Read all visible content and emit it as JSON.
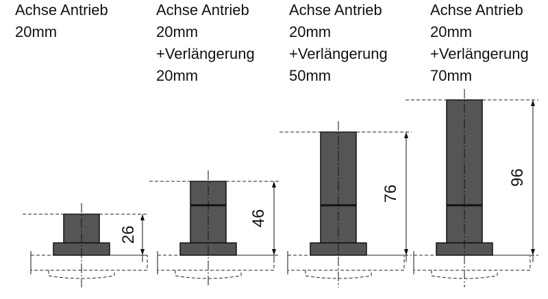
{
  "items": [
    {
      "lines": [
        "Achse Antrieb",
        "20mm"
      ],
      "dimension": 26
    },
    {
      "lines": [
        "Achse Antrieb",
        "20mm",
        "+Verlängerung",
        "20mm"
      ],
      "dimension": 46
    },
    {
      "lines": [
        "Achse Antrieb",
        "20mm",
        "+Verlängerung",
        "50mm"
      ],
      "dimension": 76
    },
    {
      "lines": [
        "Achse Antrieb",
        "20mm",
        "+Verlängerung",
        "70mm"
      ],
      "dimension": 96
    }
  ]
}
